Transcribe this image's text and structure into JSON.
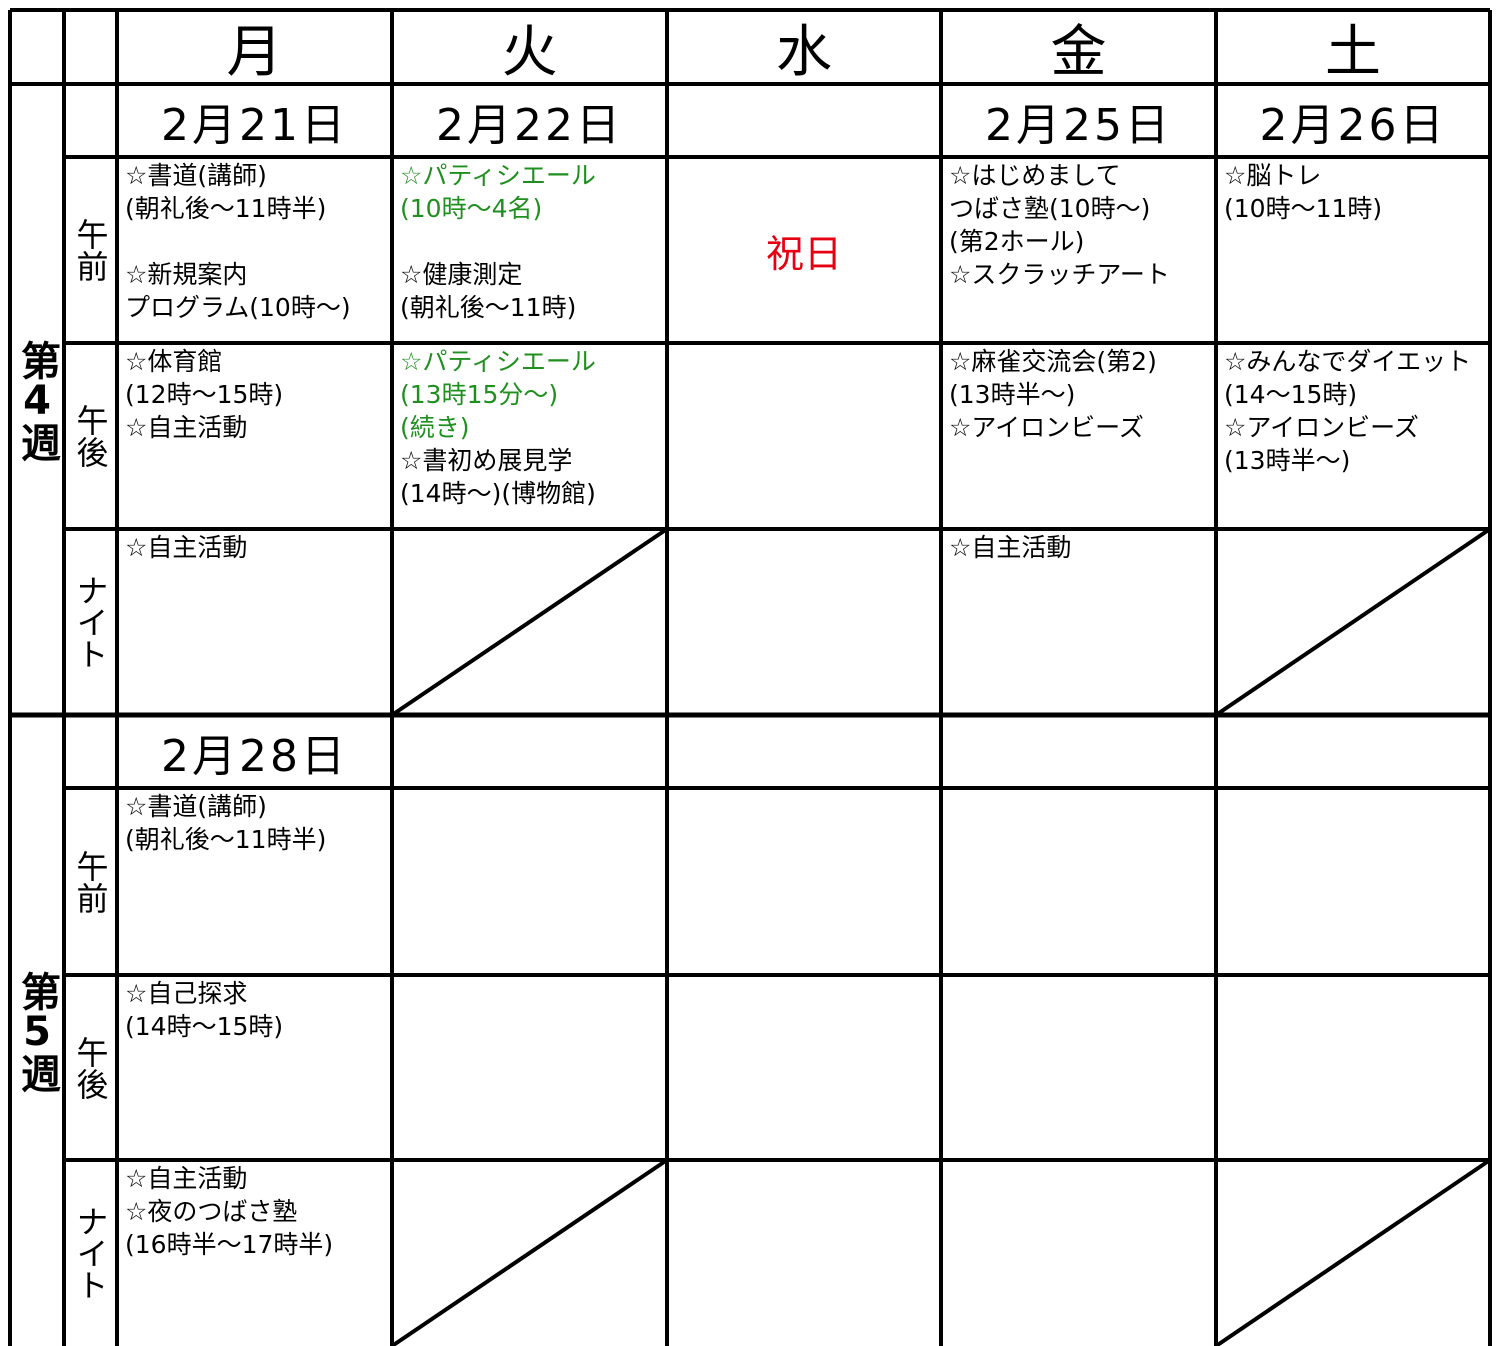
{
  "header": {
    "days": [
      "月",
      "火",
      "水",
      "金",
      "土"
    ]
  },
  "weeks": [
    {
      "label": "第4週",
      "dates": [
        "2月21日",
        "2月22日",
        null,
        "2月25日",
        "2月26日"
      ],
      "periods": [
        {
          "label": "午前",
          "cells": [
            {
              "lines": [
                "☆書道(講師)",
                "(朝礼後～11時半)",
                null,
                "☆新規案内",
                "プログラム(10時～)"
              ]
            },
            {
              "lines": [
                "☆パティシエール",
                "(10時～4名)",
                null,
                "☆健康測定",
                "(朝礼後～11時)"
              ],
              "colors": [
                "#1f8f1f",
                "#1f8f1f",
                null,
                null,
                null
              ]
            },
            {
              "lines": [
                "祝日"
              ],
              "color": "#e60012",
              "align": "center"
            },
            {
              "lines": [
                "☆はじめまして",
                "つばさ塾(10時～)",
                "(第2ホール)",
                "☆スクラッチアート"
              ]
            },
            {
              "lines": [
                "☆脳トレ",
                "(10時～11時)"
              ]
            }
          ]
        },
        {
          "label": "午後",
          "cells": [
            {
              "lines": [
                "☆体育館",
                "(12時～15時)",
                "☆自主活動"
              ]
            },
            {
              "lines": [
                "☆パティシエール",
                "(13時15分～)",
                "(続き)",
                "☆書初め展見学",
                "(14時～)(博物館)"
              ],
              "colors": [
                "#1f8f1f",
                "#1f8f1f",
                "#1f8f1f",
                null,
                null
              ]
            },
            null,
            {
              "lines": [
                "☆麻雀交流会(第2)",
                "(13時半～)",
                "☆アイロンビーズ"
              ]
            },
            {
              "lines": [
                "☆みんなでダイエット",
                "(14～15時)",
                "☆アイロンビーズ",
                "(13時半～)"
              ]
            }
          ]
        },
        {
          "label": "ナイト",
          "cells": [
            {
              "lines": [
                "☆自主活動"
              ]
            },
            {
              "slashed": true
            },
            null,
            {
              "lines": [
                "☆自主活動"
              ]
            },
            {
              "slashed": true
            }
          ]
        }
      ]
    },
    {
      "label": "第5週",
      "dates": [
        "2月28日",
        null,
        null,
        null,
        null
      ],
      "periods": [
        {
          "label": "午前",
          "cells": [
            {
              "lines": [
                "☆書道(講師)",
                "(朝礼後～11時半)"
              ]
            },
            null,
            null,
            null,
            null
          ]
        },
        {
          "label": "午後",
          "cells": [
            {
              "lines": [
                "☆自己探求",
                "(14時～15時)"
              ]
            },
            null,
            null,
            null,
            null
          ]
        },
        {
          "label": "ナイト",
          "cells": [
            {
              "lines": [
                "☆自主活動",
                "☆夜のつばさ塾",
                "(16時半～17時半)"
              ]
            },
            {
              "slashed": true
            },
            null,
            null,
            {
              "slashed": true
            }
          ]
        }
      ]
    }
  ]
}
